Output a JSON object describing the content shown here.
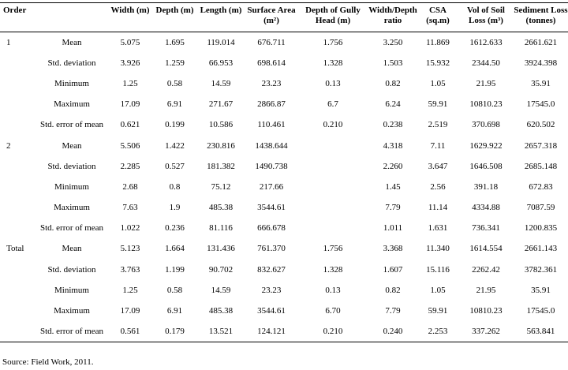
{
  "headers": {
    "order": "Order",
    "stat": "",
    "width": "Width (m)",
    "depth": "Depth (m)",
    "length": "Length (m)",
    "surface_area": "Surface Area (m²)",
    "depth_gully_head": "Depth of Gully Head (m)",
    "width_depth_ratio": "Width/Depth ratio",
    "csa": "CSA (sq.m)",
    "vol_soil_loss": "Vol of Soil Loss (m³)",
    "sediment_loss": "Sediment Loss (tonnes)"
  },
  "rows": [
    {
      "order": "1",
      "stat": "Mean",
      "width": "5.075",
      "depth": "1.695",
      "length": "119.014",
      "surface_area": "676.711",
      "depth_gully_head": "1.756",
      "width_depth_ratio": "3.250",
      "csa": "11.869",
      "vol_soil_loss": "1612.633",
      "sediment_loss": "2661.621"
    },
    {
      "order": "",
      "stat": "Std. deviation",
      "width": "3.926",
      "depth": "1.259",
      "length": "66.953",
      "surface_area": "698.614",
      "depth_gully_head": "1.328",
      "width_depth_ratio": "1.503",
      "csa": "15.932",
      "vol_soil_loss": "2344.50",
      "sediment_loss": "3924.398"
    },
    {
      "order": "",
      "stat": "Minimum",
      "width": "1.25",
      "depth": "0.58",
      "length": "14.59",
      "surface_area": "23.23",
      "depth_gully_head": "0.13",
      "width_depth_ratio": "0.82",
      "csa": "1.05",
      "vol_soil_loss": "21.95",
      "sediment_loss": "35.91"
    },
    {
      "order": "",
      "stat": "Maximum",
      "width": "17.09",
      "depth": "6.91",
      "length": "271.67",
      "surface_area": "2866.87",
      "depth_gully_head": "6.7",
      "width_depth_ratio": "6.24",
      "csa": "59.91",
      "vol_soil_loss": "10810.23",
      "sediment_loss": "17545.0"
    },
    {
      "order": "",
      "stat": "Std. error of mean",
      "width": "0.621",
      "depth": "0.199",
      "length": "10.586",
      "surface_area": "110.461",
      "depth_gully_head": "0.210",
      "width_depth_ratio": "0.238",
      "csa": "2.519",
      "vol_soil_loss": "370.698",
      "sediment_loss": "620.502"
    },
    {
      "order": "2",
      "stat": "Mean",
      "width": "5.506",
      "depth": "1.422",
      "length": "230.816",
      "surface_area": "1438.644",
      "depth_gully_head": "",
      "width_depth_ratio": "4.318",
      "csa": "7.11",
      "vol_soil_loss": "1629.922",
      "sediment_loss": "2657.318"
    },
    {
      "order": "",
      "stat": "Std. deviation",
      "width": "2.285",
      "depth": "0.527",
      "length": "181.382",
      "surface_area": "1490.738",
      "depth_gully_head": "",
      "width_depth_ratio": "2.260",
      "csa": "3.647",
      "vol_soil_loss": "1646.508",
      "sediment_loss": "2685.148"
    },
    {
      "order": "",
      "stat": "Minimum",
      "width": "2.68",
      "depth": "0.8",
      "length": "75.12",
      "surface_area": "217.66",
      "depth_gully_head": "",
      "width_depth_ratio": "1.45",
      "csa": "2.56",
      "vol_soil_loss": "391.18",
      "sediment_loss": "672.83"
    },
    {
      "order": "",
      "stat": "Maximum",
      "width": "7.63",
      "depth": "1.9",
      "length": "485.38",
      "surface_area": "3544.61",
      "depth_gully_head": "",
      "width_depth_ratio": "7.79",
      "csa": "11.14",
      "vol_soil_loss": "4334.88",
      "sediment_loss": "7087.59"
    },
    {
      "order": "",
      "stat": "Std. error of mean",
      "width": "1.022",
      "depth": "0.236",
      "length": "81.116",
      "surface_area": "666.678",
      "depth_gully_head": "",
      "width_depth_ratio": "1.011",
      "csa": "1.631",
      "vol_soil_loss": "736.341",
      "sediment_loss": "1200.835"
    },
    {
      "order": "Total",
      "stat": "Mean",
      "width": "5.123",
      "depth": "1.664",
      "length": "131.436",
      "surface_area": "761.370",
      "depth_gully_head": "1.756",
      "width_depth_ratio": "3.368",
      "csa": "11.340",
      "vol_soil_loss": "1614.554",
      "sediment_loss": "2661.143"
    },
    {
      "order": "",
      "stat": "Std. deviation",
      "width": "3.763",
      "depth": "1.199",
      "length": "90.702",
      "surface_area": "832.627",
      "depth_gully_head": "1.328",
      "width_depth_ratio": "1.607",
      "csa": "15.116",
      "vol_soil_loss": "2262.42",
      "sediment_loss": "3782.361"
    },
    {
      "order": "",
      "stat": "Minimum",
      "width": "1.25",
      "depth": "0.58",
      "length": "14.59",
      "surface_area": "23.23",
      "depth_gully_head": "0.13",
      "width_depth_ratio": "0.82",
      "csa": "1.05",
      "vol_soil_loss": "21.95",
      "sediment_loss": "35.91"
    },
    {
      "order": "",
      "stat": "Maximum",
      "width": "17.09",
      "depth": "6.91",
      "length": "485.38",
      "surface_area": "3544.61",
      "depth_gully_head": "6.70",
      "width_depth_ratio": "7.79",
      "csa": "59.91",
      "vol_soil_loss": "10810.23",
      "sediment_loss": "17545.0"
    },
    {
      "order": "",
      "stat": "Std. error of mean",
      "width": "0.561",
      "depth": "0.179",
      "length": "13.521",
      "surface_area": "124.121",
      "depth_gully_head": "0.210",
      "width_depth_ratio": "0.240",
      "csa": "2.253",
      "vol_soil_loss": "337.262",
      "sediment_loss": "563.841"
    }
  ],
  "source": "Source: Field Work, 2011."
}
